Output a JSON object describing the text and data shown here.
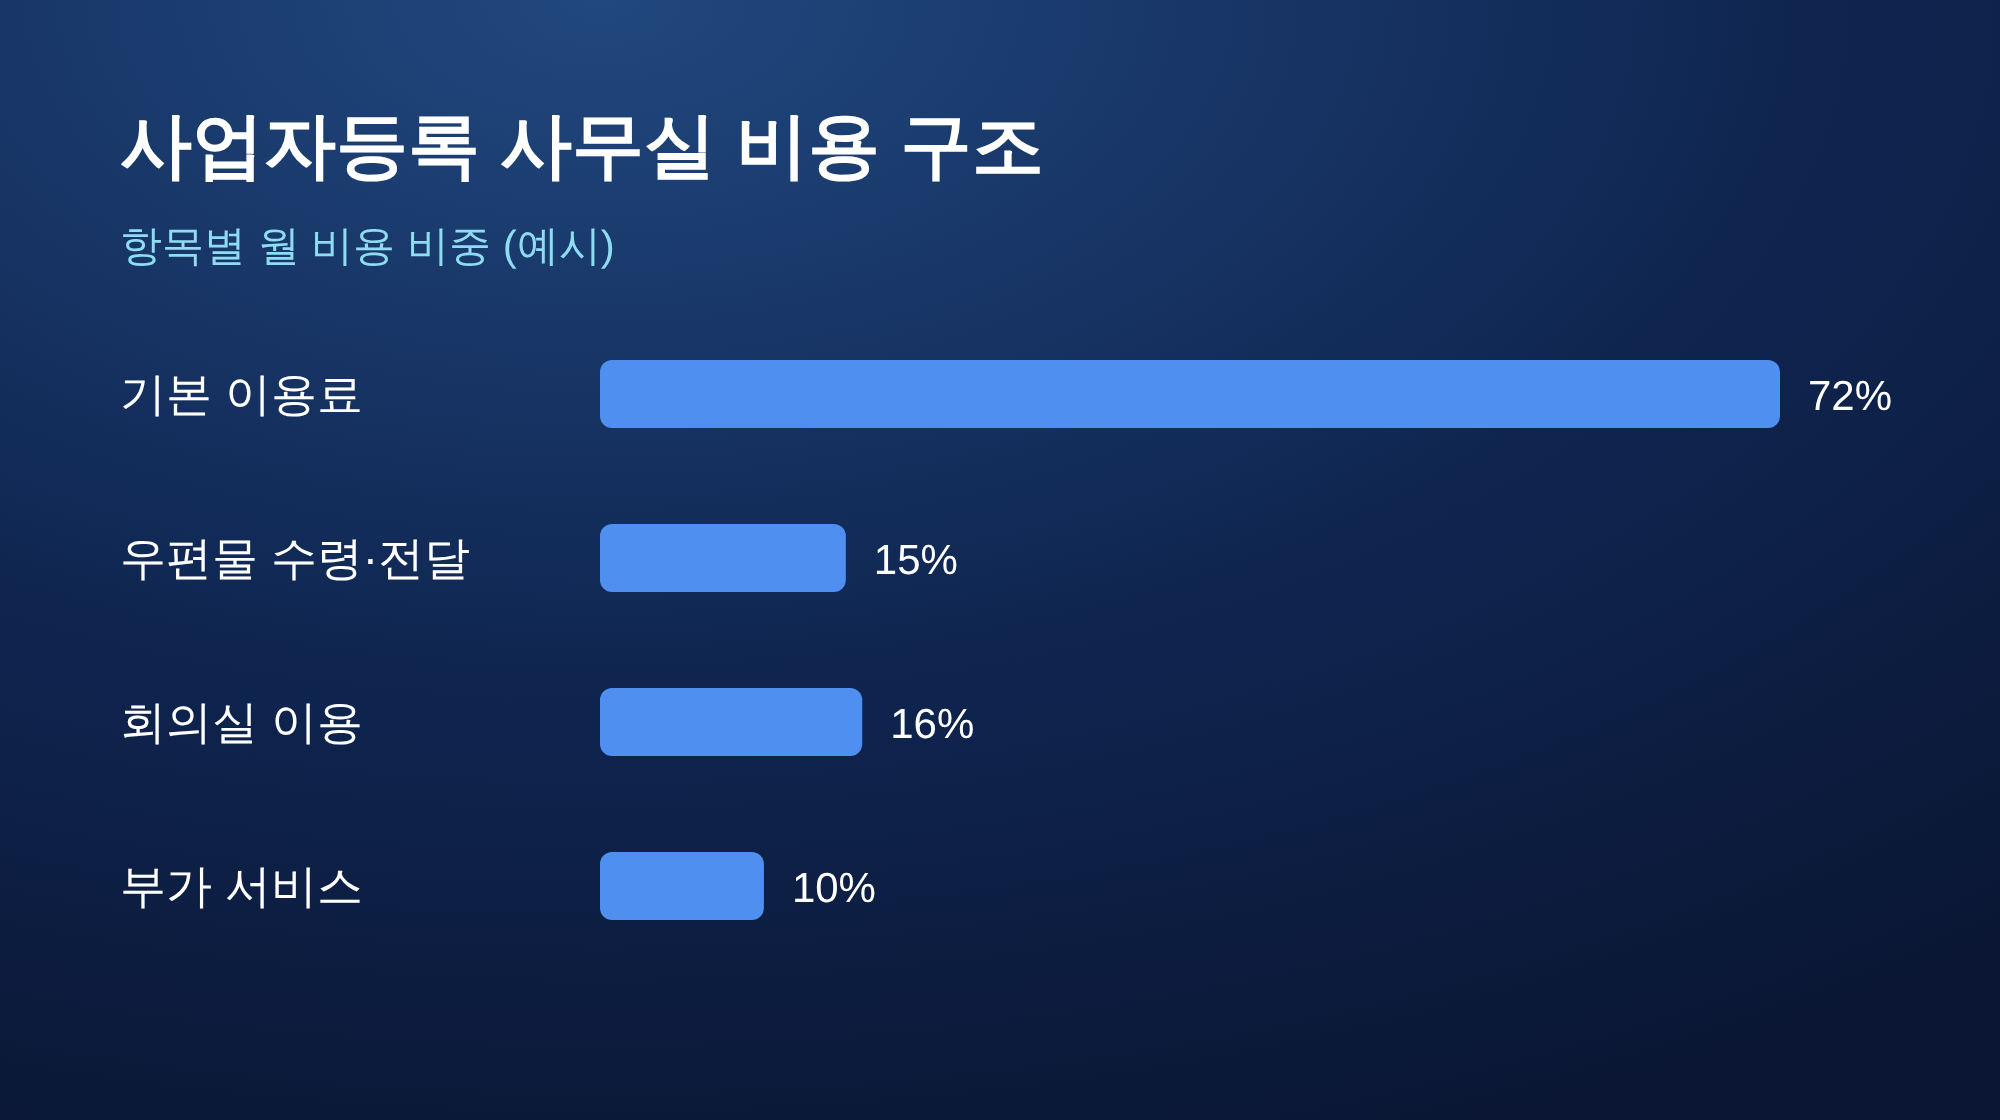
{
  "chart_data": {
    "type": "bar",
    "orientation": "horizontal",
    "title": "사업자등록 사무실 비용 구조",
    "subtitle": "항목별 월 비용 비중 (예시)",
    "categories": [
      "기본 이용료",
      "우편물 수령·전달",
      "회의실 이용",
      "부가 서비스"
    ],
    "values": [
      72,
      15,
      16,
      10
    ],
    "value_labels": [
      "72%",
      "15%",
      "16%",
      "10%"
    ],
    "color": "#4f8ff0"
  }
}
